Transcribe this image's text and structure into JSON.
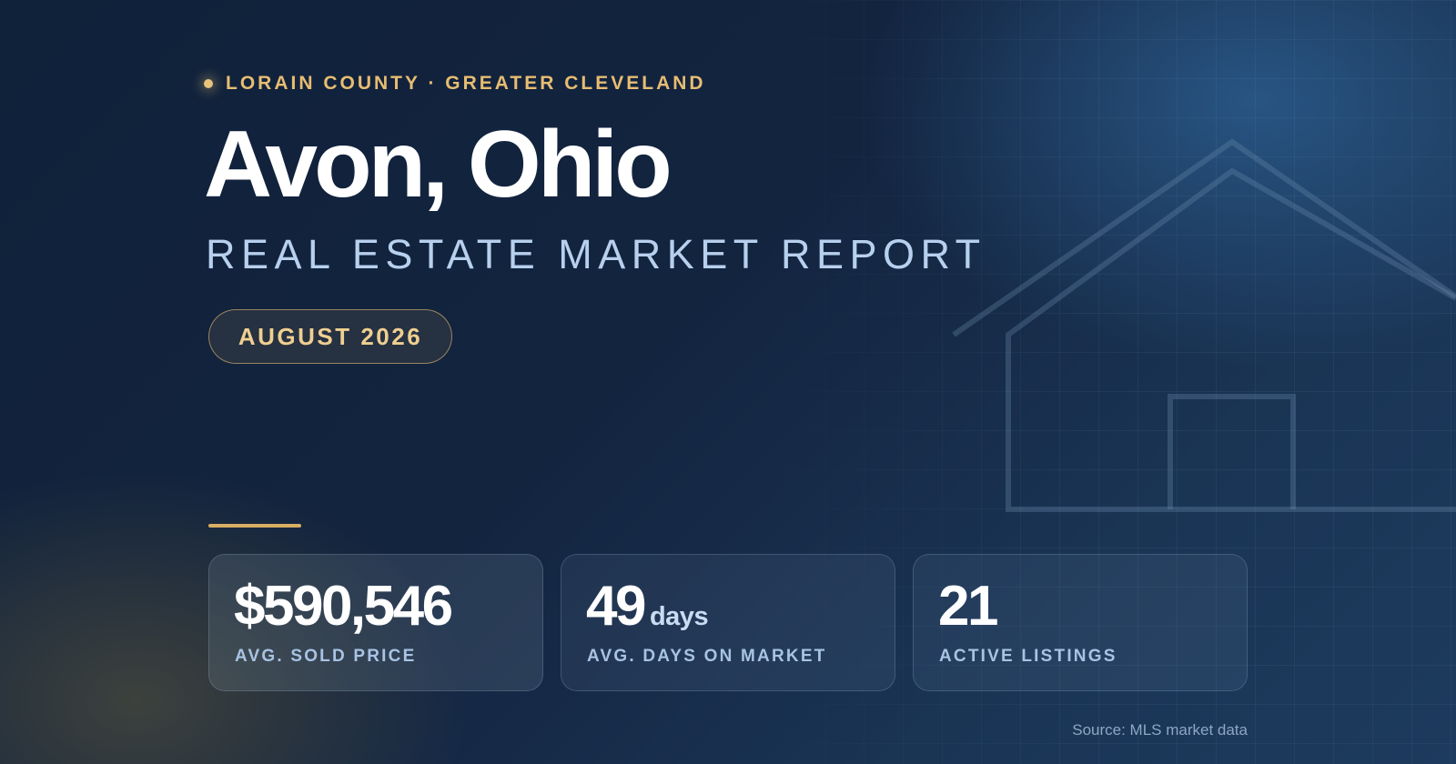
{
  "eyebrow": "LORAIN COUNTY · GREATER CLEVELAND",
  "title": "Avon, Ohio",
  "subtitle": "REAL ESTATE MARKET REPORT",
  "badge": "AUGUST 2026",
  "stats": [
    {
      "value": "$590,546",
      "unit": "",
      "label": "AVG. SOLD PRICE"
    },
    {
      "value": "49",
      "unit": "days",
      "label": "AVG. DAYS ON MARKET"
    },
    {
      "value": "21",
      "unit": "",
      "label": "ACTIVE LISTINGS"
    }
  ],
  "source": "Source: MLS market data",
  "colors": {
    "background": "#13243f",
    "accent_gold": "#e7bd72",
    "subtitle_blue": "#b7d0ee",
    "label_blue": "#a8c3e4"
  },
  "icons": [
    "house-outline-icon"
  ]
}
